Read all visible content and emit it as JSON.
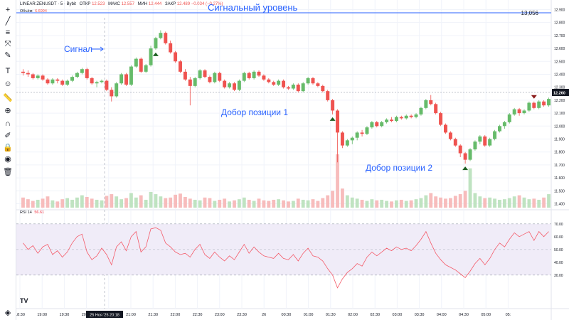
{
  "header": {
    "symbol": "LINEAR:ZENUSDT · 5 · Bybit",
    "open_label": "ОТКР",
    "open": "12.523",
    "high_label": "МАКС",
    "high": "12.557",
    "low_label": "МИН",
    "low": "12.444",
    "close_label": "ЗАКР",
    "close": "12.489",
    "change": "−0.034 (−0.27%)"
  },
  "volume_label": {
    "name": "Объём",
    "value": "6.6994"
  },
  "rsi_label": {
    "name": "RSI 14",
    "value": "56.61"
  },
  "annotations": {
    "signal_level": "Сигнальный уровень",
    "signal": "Сигнал",
    "add_position_1": "Добор позиции 1",
    "add_position_2": "Добор позиции 2"
  },
  "signal_level_value": "13,056",
  "current_price": "12.260",
  "cursor_time_label": "25 Ноя '25   20:18",
  "logo": "TV",
  "colors": {
    "up": "#66bb6a",
    "down": "#ef5350",
    "vol_up": "#bfe3c1",
    "vol_down": "#f7bcbc",
    "rsi_line": "#f45b69",
    "rsi_band": "#f0ecf8",
    "annotation": "#2962ff"
  },
  "toolbar_icons": [
    "crosshair-icon",
    "trend-line-icon",
    "horizontal-lines-icon",
    "fib-icon",
    "brush-icon",
    "text-icon",
    "emoji-icon",
    "ruler-icon",
    "zoom-icon",
    "magnet-icon",
    "lock-drawing-icon",
    "lock-icon",
    "eye-icon",
    "trash-icon",
    "layers-icon"
  ],
  "chart_data": [
    {
      "type": "candlestick",
      "title": "LINEAR:ZENUSDT · 5 · Bybit",
      "x_ticks": [
        "18:30",
        "19:00",
        "19:30",
        "20:00",
        "20:30",
        "21:00",
        "21:30",
        "22:00",
        "22:30",
        "23:00",
        "23:30",
        "26",
        "00:30",
        "01:00",
        "01:30",
        "02:00",
        "02:30",
        "03:00",
        "03:30",
        "04:00",
        "04:30",
        "05:00",
        "05:"
      ],
      "y_ticks": [
        "12.900",
        "12.800",
        "12.700",
        "12.600",
        "12.500",
        "12.400",
        "12.300",
        "12.200",
        "12.100",
        "12.000",
        "11.900",
        "11.800",
        "11.700",
        "11.600",
        "11.500",
        "11.400"
      ],
      "ylim": [
        11.37,
        12.93
      ],
      "signal_level": 13.056,
      "current_price": 12.26,
      "candles": [
        [
          12.42,
          12.44,
          12.39,
          12.41
        ],
        [
          12.41,
          12.43,
          12.38,
          12.4
        ],
        [
          12.4,
          12.41,
          12.36,
          12.37
        ],
        [
          12.37,
          12.4,
          12.36,
          12.39
        ],
        [
          12.39,
          12.4,
          12.35,
          12.36
        ],
        [
          12.36,
          12.37,
          12.32,
          12.33
        ],
        [
          12.33,
          12.37,
          12.32,
          12.36
        ],
        [
          12.36,
          12.37,
          12.33,
          12.35
        ],
        [
          12.35,
          12.36,
          12.31,
          12.32
        ],
        [
          12.32,
          12.36,
          12.31,
          12.35
        ],
        [
          12.35,
          12.39,
          12.34,
          12.38
        ],
        [
          12.38,
          12.42,
          12.37,
          12.41
        ],
        [
          12.41,
          12.45,
          12.4,
          12.44
        ],
        [
          12.44,
          12.45,
          12.36,
          12.37
        ],
        [
          12.37,
          12.38,
          12.32,
          12.33
        ],
        [
          12.33,
          12.35,
          12.3,
          12.34
        ],
        [
          12.34,
          12.36,
          12.33,
          12.35
        ],
        [
          12.35,
          12.36,
          12.27,
          12.28
        ],
        [
          12.28,
          12.3,
          12.19,
          12.23
        ],
        [
          12.23,
          12.34,
          12.22,
          12.33
        ],
        [
          12.33,
          12.41,
          12.32,
          12.4
        ],
        [
          12.4,
          12.41,
          12.31,
          12.32
        ],
        [
          12.32,
          12.47,
          12.31,
          12.46
        ],
        [
          12.46,
          12.53,
          12.45,
          12.52
        ],
        [
          12.52,
          12.53,
          12.41,
          12.42
        ],
        [
          12.42,
          12.48,
          12.41,
          12.47
        ],
        [
          12.47,
          12.62,
          12.46,
          12.6
        ],
        [
          12.6,
          12.69,
          12.59,
          12.68
        ],
        [
          12.68,
          12.74,
          12.67,
          12.72
        ],
        [
          12.72,
          12.73,
          12.63,
          12.64
        ],
        [
          12.64,
          12.66,
          12.56,
          12.57
        ],
        [
          12.57,
          12.58,
          12.49,
          12.5
        ],
        [
          12.5,
          12.51,
          12.41,
          12.42
        ],
        [
          12.42,
          12.44,
          12.35,
          12.36
        ],
        [
          12.36,
          12.38,
          12.16,
          12.31
        ],
        [
          12.31,
          12.38,
          12.3,
          12.37
        ],
        [
          12.37,
          12.44,
          12.36,
          12.43
        ],
        [
          12.43,
          12.44,
          12.37,
          12.38
        ],
        [
          12.38,
          12.39,
          12.33,
          12.34
        ],
        [
          12.34,
          12.42,
          12.33,
          12.41
        ],
        [
          12.41,
          12.42,
          12.34,
          12.35
        ],
        [
          12.35,
          12.36,
          12.29,
          12.3
        ],
        [
          12.3,
          12.34,
          12.29,
          12.33
        ],
        [
          12.33,
          12.34,
          12.27,
          12.28
        ],
        [
          12.28,
          12.36,
          12.27,
          12.35
        ],
        [
          12.35,
          12.42,
          12.34,
          12.41
        ],
        [
          12.41,
          12.42,
          12.36,
          12.37
        ],
        [
          12.37,
          12.43,
          12.36,
          12.42
        ],
        [
          12.42,
          12.43,
          12.38,
          12.39
        ],
        [
          12.39,
          12.4,
          12.35,
          12.36
        ],
        [
          12.36,
          12.37,
          12.33,
          12.34
        ],
        [
          12.34,
          12.35,
          12.31,
          12.32
        ],
        [
          12.32,
          12.36,
          12.31,
          12.35
        ],
        [
          12.35,
          12.36,
          12.29,
          12.3
        ],
        [
          12.3,
          12.31,
          12.28,
          12.29
        ],
        [
          12.29,
          12.33,
          12.28,
          12.32
        ],
        [
          12.32,
          12.33,
          12.26,
          12.27
        ],
        [
          12.27,
          12.34,
          12.26,
          12.33
        ],
        [
          12.33,
          12.38,
          12.32,
          12.37
        ],
        [
          12.37,
          12.38,
          12.32,
          12.33
        ],
        [
          12.33,
          12.34,
          12.3,
          12.31
        ],
        [
          12.31,
          12.32,
          12.26,
          12.27
        ],
        [
          12.27,
          12.28,
          12.19,
          12.2
        ],
        [
          12.2,
          12.21,
          12.09,
          12.12
        ],
        [
          12.12,
          12.13,
          11.72,
          11.95
        ],
        [
          11.95,
          11.96,
          11.83,
          11.85
        ],
        [
          11.85,
          11.9,
          11.84,
          11.89
        ],
        [
          11.89,
          11.92,
          11.86,
          11.91
        ],
        [
          11.91,
          11.96,
          11.89,
          11.95
        ],
        [
          11.95,
          11.97,
          11.92,
          11.94
        ],
        [
          11.94,
          12.0,
          11.93,
          11.99
        ],
        [
          11.99,
          12.04,
          11.98,
          12.03
        ],
        [
          12.03,
          12.04,
          11.99,
          12.0
        ],
        [
          12.0,
          12.04,
          11.99,
          12.03
        ],
        [
          12.03,
          12.06,
          12.02,
          12.05
        ],
        [
          12.05,
          12.07,
          12.03,
          12.04
        ],
        [
          12.04,
          12.08,
          12.03,
          12.07
        ],
        [
          12.07,
          12.08,
          12.05,
          12.06
        ],
        [
          12.06,
          12.09,
          12.05,
          12.08
        ],
        [
          12.08,
          12.09,
          12.06,
          12.07
        ],
        [
          12.07,
          12.1,
          12.06,
          12.09
        ],
        [
          12.09,
          12.15,
          12.08,
          12.14
        ],
        [
          12.14,
          12.21,
          12.13,
          12.2
        ],
        [
          12.2,
          12.24,
          12.16,
          12.17
        ],
        [
          12.17,
          12.18,
          12.09,
          12.1
        ],
        [
          12.1,
          12.11,
          12.0,
          12.01
        ],
        [
          12.01,
          12.02,
          11.94,
          11.95
        ],
        [
          11.95,
          11.96,
          11.89,
          11.9
        ],
        [
          11.9,
          11.91,
          11.84,
          11.85
        ],
        [
          11.85,
          11.86,
          11.76,
          11.79
        ],
        [
          11.79,
          11.8,
          11.71,
          11.74
        ],
        [
          11.74,
          11.83,
          11.73,
          11.82
        ],
        [
          11.82,
          11.89,
          11.81,
          11.88
        ],
        [
          11.88,
          11.93,
          11.86,
          11.92
        ],
        [
          11.92,
          11.93,
          11.84,
          11.85
        ],
        [
          11.85,
          11.91,
          11.84,
          11.9
        ],
        [
          11.9,
          11.97,
          11.89,
          11.96
        ],
        [
          11.96,
          12.01,
          11.95,
          12.0
        ],
        [
          12.0,
          12.04,
          11.98,
          12.03
        ],
        [
          12.03,
          12.1,
          12.02,
          12.09
        ],
        [
          12.09,
          12.14,
          12.08,
          12.13
        ],
        [
          12.13,
          12.14,
          12.08,
          12.1
        ],
        [
          12.1,
          12.13,
          12.09,
          12.12
        ],
        [
          12.12,
          12.19,
          12.11,
          12.18
        ],
        [
          12.18,
          12.19,
          12.13,
          12.14
        ],
        [
          12.14,
          12.2,
          12.13,
          12.19
        ],
        [
          12.19,
          12.2,
          12.15,
          12.16
        ],
        [
          12.16,
          12.22,
          12.15,
          12.21
        ]
      ],
      "volumes": [
        18,
        15,
        12,
        14,
        16,
        20,
        13,
        11,
        15,
        17,
        14,
        18,
        22,
        19,
        16,
        14,
        13,
        21,
        24,
        20,
        15,
        17,
        26,
        18,
        22,
        14,
        28,
        24,
        20,
        17,
        18,
        23,
        25,
        19,
        16,
        14,
        13,
        18,
        17,
        12,
        14,
        16,
        11,
        13,
        15,
        18,
        14,
        12,
        16,
        13,
        12,
        14,
        15,
        13,
        11,
        12,
        16,
        14,
        13,
        15,
        12,
        17,
        22,
        30,
        95,
        34,
        22,
        18,
        16,
        14,
        12,
        15,
        13,
        14,
        12,
        11,
        13,
        14,
        12,
        13,
        15,
        17,
        22,
        26,
        20,
        18,
        16,
        17,
        21,
        24,
        30,
        70,
        26,
        20,
        17,
        18,
        16,
        14,
        15,
        17,
        20,
        22,
        18,
        15,
        16,
        14,
        18,
        24
      ],
      "markers": [
        {
          "type": "buy",
          "candle": 27
        },
        {
          "type": "buy",
          "candle": 63
        },
        {
          "type": "buy",
          "candle": 90
        },
        {
          "type": "sell",
          "candle": 104
        }
      ]
    },
    {
      "type": "line",
      "title": "RSI 14",
      "y_ticks": [
        "70.00",
        "60.00",
        "50.00",
        "40.00",
        "30.00"
      ],
      "ylim": [
        16,
        76
      ],
      "band": [
        30,
        70
      ],
      "midline": 50,
      "series": [
        {
          "values": [
            55,
            50,
            53,
            47,
            52,
            54,
            46,
            49,
            44,
            48,
            55,
            60,
            62,
            48,
            42,
            45,
            51,
            46,
            38,
            52,
            56,
            49,
            60,
            64,
            48,
            52,
            66,
            67,
            65,
            55,
            52,
            48,
            46,
            47,
            44,
            50,
            54,
            46,
            43,
            48,
            44,
            41,
            45,
            42,
            48,
            54,
            47,
            52,
            48,
            45,
            44,
            43,
            47,
            43,
            42,
            46,
            41,
            47,
            51,
            45,
            44,
            41,
            35,
            30,
            20,
            27,
            32,
            35,
            39,
            37,
            44,
            48,
            45,
            48,
            51,
            49,
            52,
            50,
            51,
            49,
            53,
            58,
            64,
            55,
            47,
            42,
            38,
            36,
            34,
            31,
            28,
            33,
            39,
            43,
            38,
            43,
            50,
            55,
            52,
            58,
            63,
            60,
            62,
            64,
            57,
            64,
            60,
            64
          ]
        }
      ]
    }
  ]
}
